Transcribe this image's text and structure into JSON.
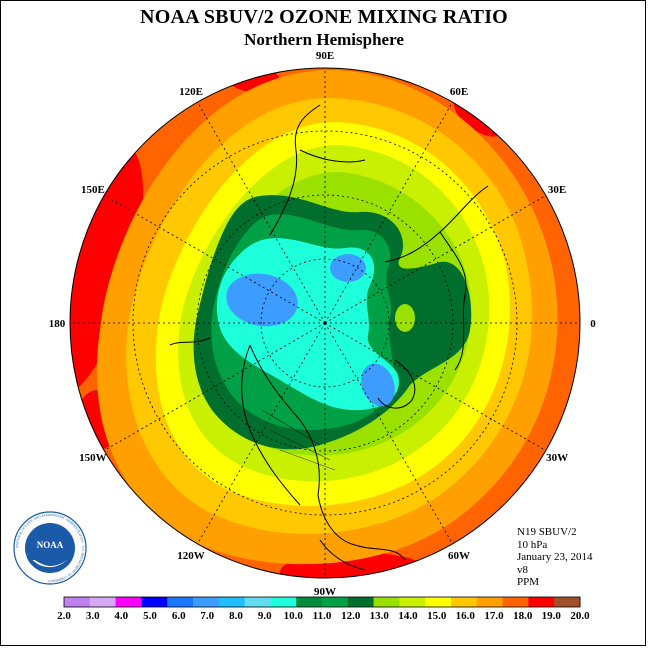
{
  "header": {
    "title": "NOAA SBUV/2 OZONE MIXING RATIO",
    "subtitle": "Northern Hemisphere"
  },
  "longitude_labels": [
    "90E",
    "60E",
    "30E",
    "0",
    "30W",
    "60W",
    "90W",
    "120W",
    "150W",
    "180",
    "150E",
    "120E"
  ],
  "info": {
    "instrument": "N19 SBUV/2",
    "level": "10 hPa",
    "date": "January 23, 2014",
    "version": "v8",
    "units": "PPM"
  },
  "logo": {
    "text": "NOAA",
    "ring_text": "NATIONAL OCEANIC AND ATMOSPHERIC ADMINISTRATION · U.S. DEPARTMENT OF COMMERCE"
  },
  "colorbar": {
    "ticks": [
      "2.0",
      "3.0",
      "4.0",
      "5.0",
      "6.0",
      "7.0",
      "8.0",
      "9.0",
      "10.0",
      "11.0",
      "12.0",
      "13.0",
      "14.0",
      "15.0",
      "16.0",
      "17.0",
      "18.0",
      "19.0",
      "20.0"
    ],
    "colors": [
      "#c080f0",
      "#d4a8f4",
      "#ff00ff",
      "#0000ff",
      "#1a78ff",
      "#3c9cff",
      "#1ebeff",
      "#64dcf0",
      "#1effdc",
      "#008c3c",
      "#00a046",
      "#006e2c",
      "#9be100",
      "#c8f000",
      "#ffff00",
      "#ffc800",
      "#ffa000",
      "#ff6400",
      "#ff0000",
      "#a05028"
    ]
  },
  "map_levels": [
    {
      "value": "13.0",
      "color": "#9be100"
    },
    {
      "value": "12.0",
      "color": "#006e2c"
    },
    {
      "value": "11.0",
      "color": "#00a046"
    },
    {
      "value": "10.0",
      "color": "#1effdc"
    },
    {
      "value": "9.0",
      "color": "#3c9cff"
    }
  ]
}
